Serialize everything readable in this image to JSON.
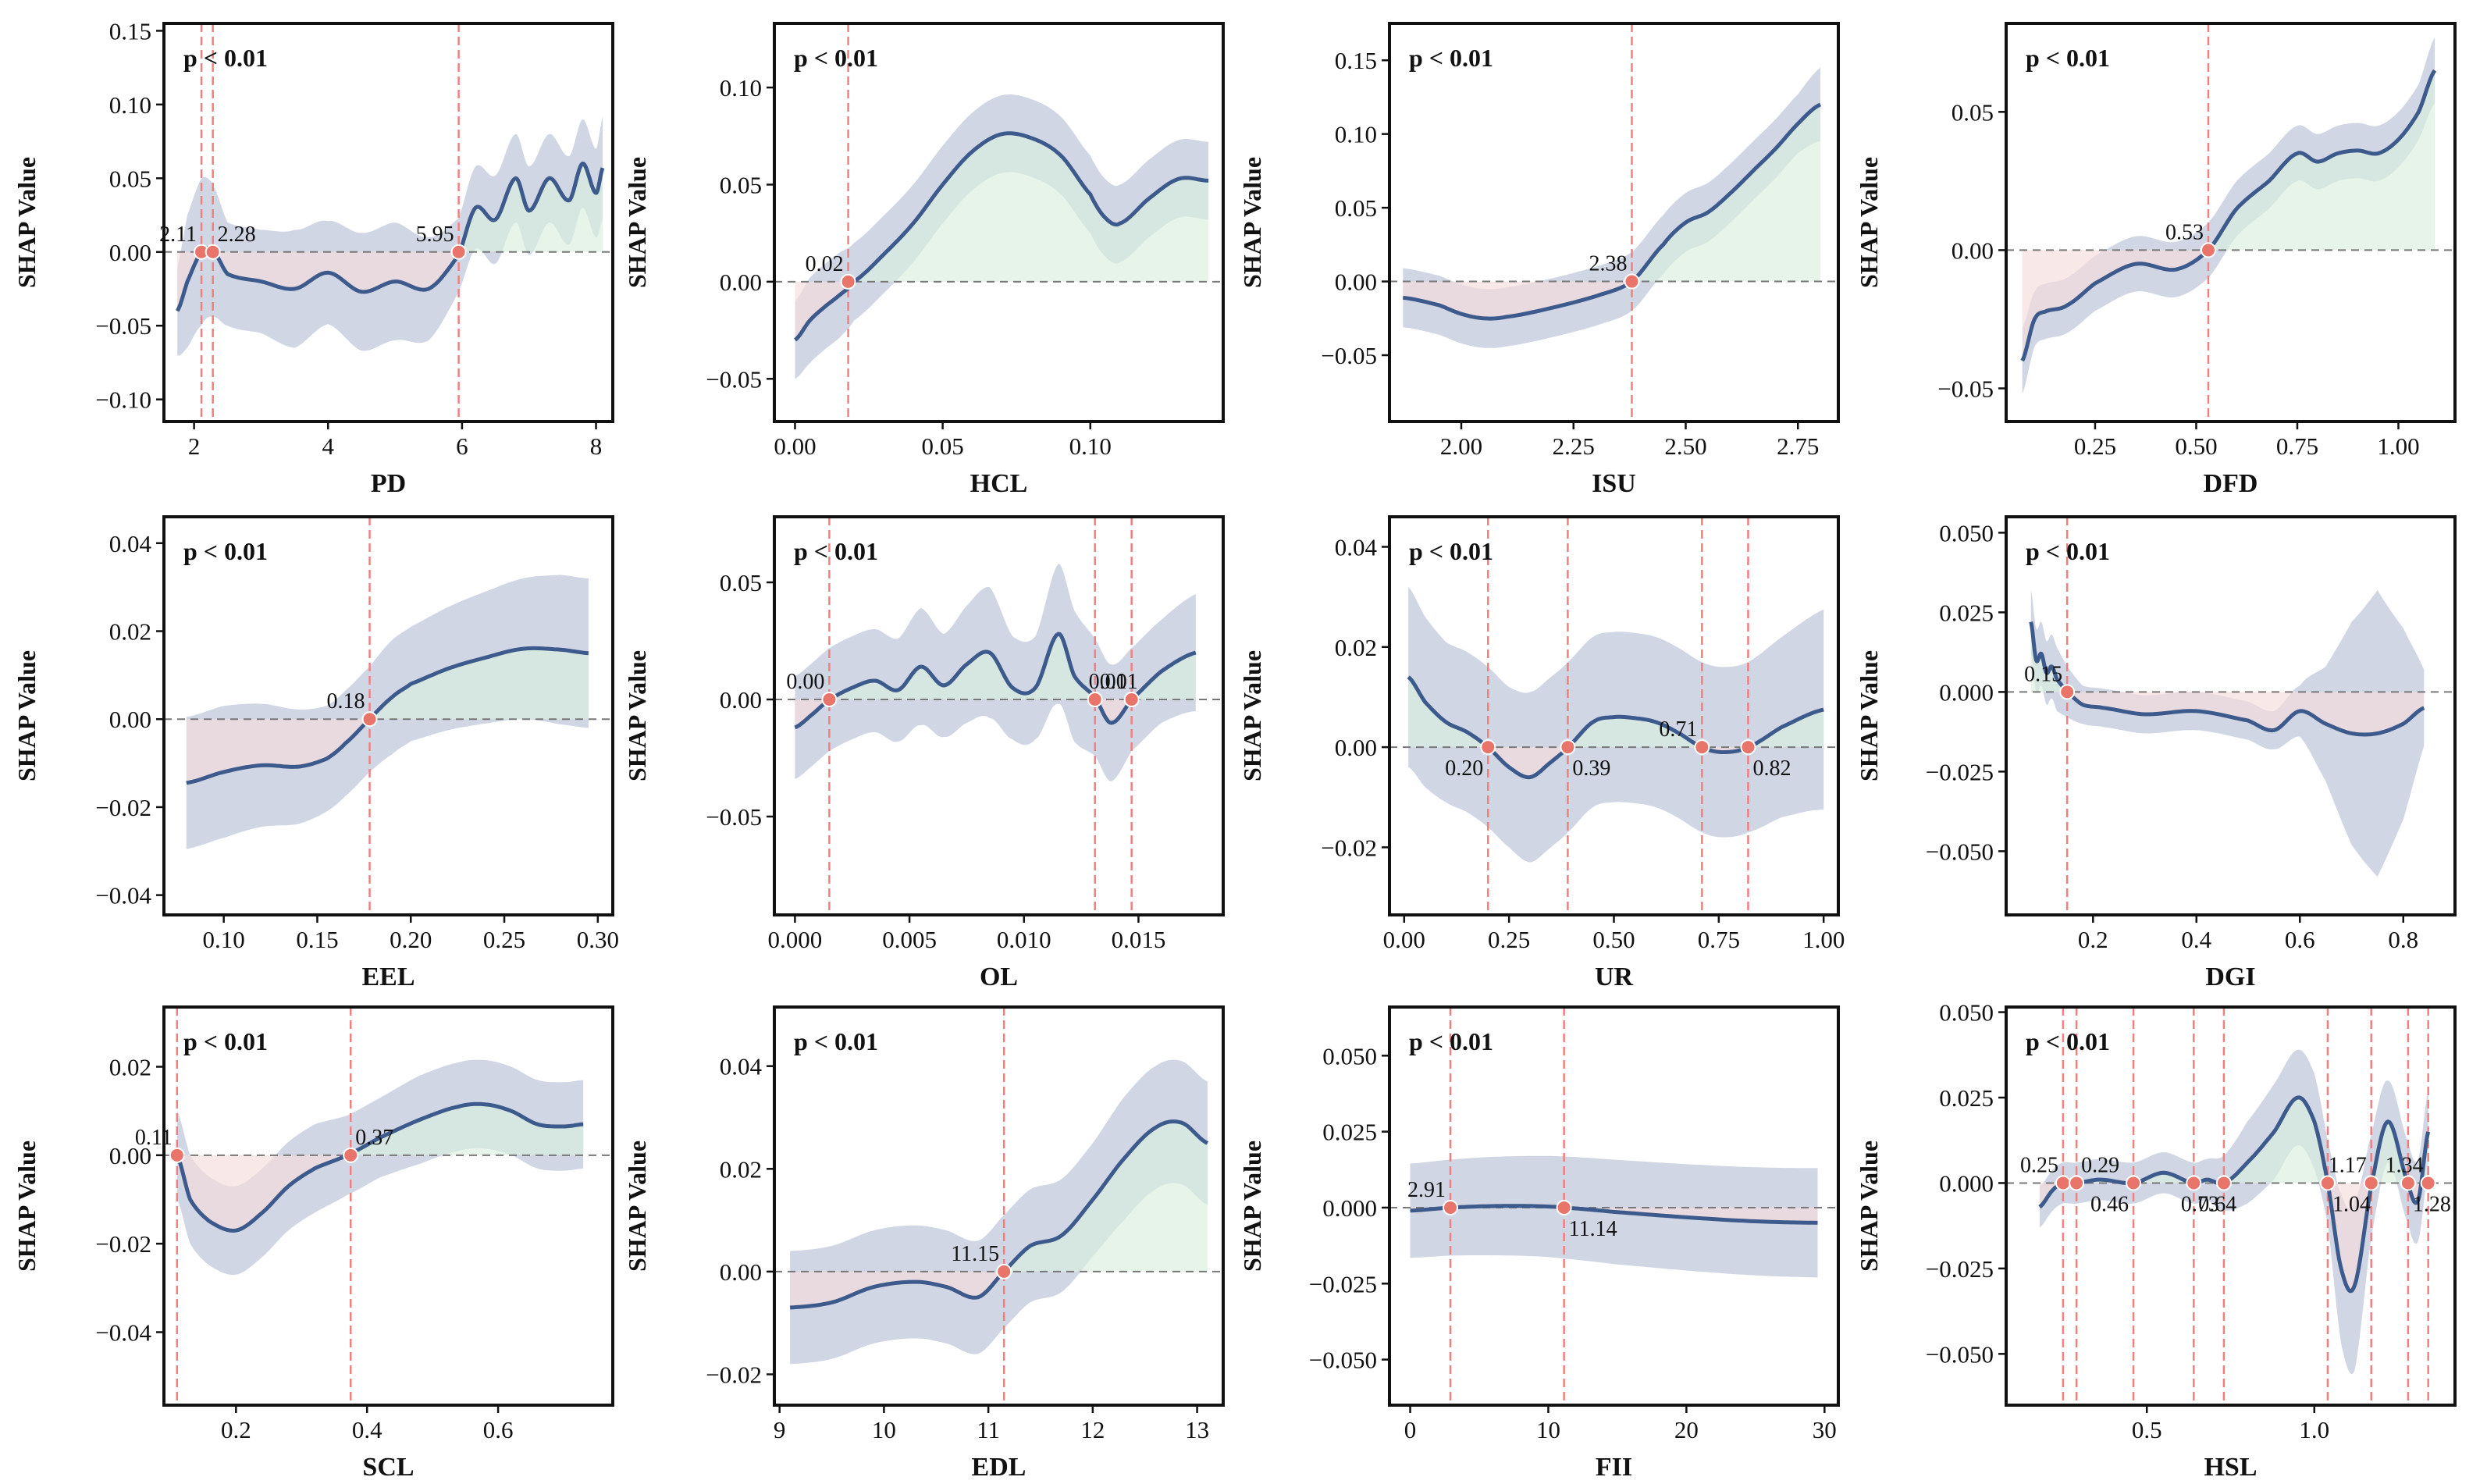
{
  "style": {
    "line_color": "#3d5a8c",
    "band_color": "#c9cfe0",
    "pos_fill": "#d9eedf",
    "neg_fill": "#f6dcdc",
    "vline_color": "#f08080",
    "marker_color": "#e8746a"
  },
  "chart_data": [
    {
      "type": "line",
      "xlabel": "PD",
      "ylabel": "SHAP Value",
      "annotation": "p < 0.01",
      "xlim": [
        1.55,
        8.25
      ],
      "ylim": [
        -0.115,
        0.155
      ],
      "xticks": [
        2,
        4,
        6,
        8
      ],
      "xtick_labels": [
        "2",
        "4",
        "6",
        "8"
      ],
      "yticks": [
        -0.1,
        -0.05,
        0,
        0.05,
        0.1,
        0.15
      ],
      "ytick_labels": [
        "−0.10",
        "−0.05",
        "0.00",
        "0.05",
        "0.10",
        "0.15"
      ],
      "x": [
        1.75,
        1.9,
        2.11,
        2.28,
        2.5,
        3,
        3.5,
        4,
        4.5,
        5,
        5.5,
        5.95,
        6.2,
        6.5,
        6.8,
        7,
        7.3,
        7.6,
        7.8,
        8,
        8.1
      ],
      "y": [
        -0.04,
        -0.02,
        0,
        0.001,
        -0.015,
        -0.02,
        -0.025,
        -0.014,
        -0.027,
        -0.02,
        -0.025,
        -0.002,
        0.03,
        0.022,
        0.05,
        0.028,
        0.05,
        0.035,
        0.06,
        0.04,
        0.057
      ],
      "band": [
        0.03,
        0.045,
        0.05,
        0.045,
        0.035,
        0.035,
        0.04,
        0.035,
        0.04,
        0.04,
        0.035,
        0.025,
        0.028,
        0.03,
        0.03,
        0.03,
        0.03,
        0.03,
        0.03,
        0.03,
        0.035
      ],
      "crossings": [
        {
          "x": 2.11,
          "label": "2.11"
        },
        {
          "x": 2.28,
          "label": "2.28"
        },
        {
          "x": 5.95,
          "label": "5.95"
        }
      ]
    },
    {
      "type": "line",
      "xlabel": "HCL",
      "ylabel": "SHAP Value",
      "annotation": "p < 0.01",
      "xlim": [
        -0.007,
        0.145
      ],
      "ylim": [
        -0.072,
        0.133
      ],
      "xticks": [
        0,
        0.05,
        0.1
      ],
      "xtick_labels": [
        "0.00",
        "0.05",
        "0.10"
      ],
      "yticks": [
        -0.05,
        0,
        0.05,
        0.1
      ],
      "ytick_labels": [
        "−0.05",
        "0.00",
        "0.05",
        "0.10"
      ],
      "x": [
        0,
        0.005,
        0.01,
        0.015,
        0.02,
        0.03,
        0.04,
        0.05,
        0.06,
        0.07,
        0.08,
        0.09,
        0.1,
        0.105,
        0.11,
        0.12,
        0.13,
        0.14
      ],
      "y": [
        -0.03,
        -0.02,
        -0.013,
        -0.007,
        0,
        0.014,
        0.03,
        0.05,
        0.067,
        0.076,
        0.074,
        0.065,
        0.045,
        0.033,
        0.03,
        0.043,
        0.053,
        0.052
      ],
      "band": [
        0.02,
        0.022,
        0.022,
        0.022,
        0.02,
        0.02,
        0.02,
        0.02,
        0.02,
        0.02,
        0.02,
        0.02,
        0.02,
        0.02,
        0.02,
        0.02,
        0.02,
        0.02
      ],
      "crossings": [
        {
          "x": 0.018,
          "label": "0.02"
        }
      ]
    },
    {
      "type": "line",
      "xlabel": "ISU",
      "ylabel": "SHAP Value",
      "annotation": "p < 0.01",
      "xlim": [
        1.84,
        2.84
      ],
      "ylim": [
        -0.095,
        0.175
      ],
      "xticks": [
        2,
        2.25,
        2.5,
        2.75
      ],
      "xtick_labels": [
        "2.00",
        "2.25",
        "2.50",
        "2.75"
      ],
      "yticks": [
        -0.05,
        0,
        0.05,
        0.1,
        0.15
      ],
      "ytick_labels": [
        "−0.05",
        "0.00",
        "0.05",
        "0.10",
        "0.15"
      ],
      "x": [
        1.87,
        1.95,
        2,
        2.05,
        2.1,
        2.2,
        2.3,
        2.38,
        2.45,
        2.5,
        2.55,
        2.6,
        2.65,
        2.7,
        2.75,
        2.8
      ],
      "y": [
        -0.011,
        -0.016,
        -0.022,
        -0.025,
        -0.024,
        -0.018,
        -0.01,
        0,
        0.025,
        0.04,
        0.047,
        0.06,
        0.075,
        0.09,
        0.107,
        0.12
      ],
      "band": [
        0.02,
        0.02,
        0.02,
        0.02,
        0.02,
        0.02,
        0.02,
        0.02,
        0.02,
        0.02,
        0.02,
        0.02,
        0.02,
        0.02,
        0.02,
        0.025
      ],
      "crossings": [
        {
          "x": 2.38,
          "label": "2.38"
        }
      ]
    },
    {
      "type": "line",
      "xlabel": "DFD",
      "ylabel": "SHAP Value",
      "annotation": "p < 0.01",
      "xlim": [
        0.03,
        1.14
      ],
      "ylim": [
        -0.062,
        0.082
      ],
      "xticks": [
        0.25,
        0.5,
        0.75,
        1
      ],
      "xtick_labels": [
        "0.25",
        "0.50",
        "0.75",
        "1.00"
      ],
      "yticks": [
        -0.05,
        0,
        0.05
      ],
      "ytick_labels": [
        "−0.05",
        "0.00",
        "0.05"
      ],
      "x": [
        0.07,
        0.1,
        0.13,
        0.18,
        0.25,
        0.35,
        0.45,
        0.53,
        0.6,
        0.68,
        0.75,
        0.8,
        0.85,
        0.9,
        0.95,
        1,
        1.05,
        1.09
      ],
      "y": [
        -0.04,
        -0.025,
        -0.022,
        -0.02,
        -0.012,
        -0.005,
        -0.007,
        0,
        0.015,
        0.025,
        0.035,
        0.032,
        0.035,
        0.036,
        0.035,
        0.04,
        0.05,
        0.065
      ],
      "band": [
        0.012,
        0.01,
        0.01,
        0.01,
        0.01,
        0.01,
        0.01,
        0.01,
        0.01,
        0.01,
        0.01,
        0.01,
        0.01,
        0.01,
        0.01,
        0.01,
        0.01,
        0.012
      ],
      "crossings": [
        {
          "x": 0.53,
          "label": "0.53"
        }
      ]
    },
    {
      "type": "line",
      "xlabel": "EEL",
      "ylabel": "SHAP Value",
      "annotation": "p < 0.01",
      "xlim": [
        0.068,
        0.308
      ],
      "ylim": [
        -0.0445,
        0.046
      ],
      "xticks": [
        0.1,
        0.15,
        0.2,
        0.25,
        0.3
      ],
      "xtick_labels": [
        "0.10",
        "0.15",
        "0.20",
        "0.25",
        "0.30"
      ],
      "yticks": [
        -0.04,
        -0.02,
        0,
        0.02,
        0.04
      ],
      "ytick_labels": [
        "−0.04",
        "−0.02",
        "0.00",
        "0.02",
        "0.04"
      ],
      "x": [
        0.08,
        0.1,
        0.12,
        0.14,
        0.155,
        0.165,
        0.178,
        0.19,
        0.2,
        0.22,
        0.24,
        0.26,
        0.28,
        0.295
      ],
      "y": [
        -0.0145,
        -0.012,
        -0.0105,
        -0.0108,
        -0.009,
        -0.0055,
        0,
        0.005,
        0.008,
        0.0115,
        0.014,
        0.016,
        0.0158,
        0.015
      ],
      "band": [
        0.015,
        0.015,
        0.014,
        0.013,
        0.012,
        0.012,
        0.012,
        0.013,
        0.013,
        0.014,
        0.015,
        0.016,
        0.017,
        0.017
      ],
      "crossings": [
        {
          "x": 0.178,
          "label": "0.18"
        }
      ]
    },
    {
      "type": "line",
      "xlabel": "OL",
      "ylabel": "SHAP Value",
      "annotation": "p < 0.01",
      "xlim": [
        -0.0009,
        0.0187
      ],
      "ylim": [
        -0.092,
        0.078
      ],
      "xticks": [
        0,
        0.005,
        0.01,
        0.015
      ],
      "xtick_labels": [
        "0.000",
        "0.005",
        "0.010",
        "0.015"
      ],
      "yticks": [
        -0.05,
        0,
        0.05
      ],
      "ytick_labels": [
        "−0.05",
        "0.00",
        "0.05"
      ],
      "x": [
        0,
        0.0008,
        0.0015,
        0.0025,
        0.0035,
        0.0045,
        0.0055,
        0.0065,
        0.0075,
        0.0085,
        0.0095,
        0.0105,
        0.0115,
        0.0122,
        0.0131,
        0.0138,
        0.0147,
        0.016,
        0.0175
      ],
      "y": [
        -0.012,
        -0.006,
        0,
        0.005,
        0.008,
        0.004,
        0.014,
        0.006,
        0.015,
        0.02,
        0.005,
        0.005,
        0.028,
        0.01,
        0.001,
        -0.01,
        0,
        0.012,
        0.02
      ],
      "band": [
        0.022,
        0.022,
        0.022,
        0.022,
        0.022,
        0.022,
        0.025,
        0.022,
        0.025,
        0.028,
        0.022,
        0.022,
        0.03,
        0.028,
        0.025,
        0.025,
        0.022,
        0.022,
        0.025
      ],
      "crossings": [
        {
          "x": 0.0015,
          "label": "0.00"
        },
        {
          "x": 0.0131,
          "label": "0.01"
        },
        {
          "x": 0.0147,
          "label": "0.01"
        }
      ]
    },
    {
      "type": "line",
      "xlabel": "UR",
      "ylabel": "SHAP Value",
      "annotation": "p < 0.01",
      "xlim": [
        -0.035,
        1.035
      ],
      "ylim": [
        -0.0335,
        0.046
      ],
      "xticks": [
        0,
        0.25,
        0.5,
        0.75,
        1
      ],
      "xtick_labels": [
        "0.00",
        "0.25",
        "0.50",
        "0.75",
        "1.00"
      ],
      "yticks": [
        -0.02,
        0,
        0.02,
        0.04
      ],
      "ytick_labels": [
        "−0.02",
        "0.00",
        "0.02",
        "0.04"
      ],
      "x": [
        0.01,
        0.05,
        0.1,
        0.15,
        0.2,
        0.25,
        0.3,
        0.35,
        0.39,
        0.45,
        0.5,
        0.55,
        0.6,
        0.65,
        0.71,
        0.76,
        0.82,
        0.9,
        1
      ],
      "y": [
        0.014,
        0.009,
        0.005,
        0.003,
        0,
        -0.004,
        -0.006,
        -0.003,
        0,
        0.005,
        0.006,
        0.0058,
        0.005,
        0.003,
        0,
        -0.001,
        0,
        0.004,
        0.0075
      ],
      "band": [
        0.018,
        0.017,
        0.016,
        0.016,
        0.016,
        0.016,
        0.017,
        0.017,
        0.017,
        0.017,
        0.017,
        0.017,
        0.017,
        0.017,
        0.017,
        0.017,
        0.017,
        0.018,
        0.02
      ],
      "crossings": [
        {
          "x": 0.2,
          "label": "0.20"
        },
        {
          "x": 0.39,
          "label": "0.39"
        },
        {
          "x": 0.71,
          "label": "0.71"
        },
        {
          "x": 0.82,
          "label": "0.82"
        }
      ]
    },
    {
      "type": "line",
      "xlabel": "DGI",
      "ylabel": "SHAP Value",
      "annotation": "p < 0.01",
      "xlim": [
        0.032,
        0.9
      ],
      "ylim": [
        -0.07,
        0.055
      ],
      "xticks": [
        0.2,
        0.4,
        0.6,
        0.8
      ],
      "xtick_labels": [
        "0.2",
        "0.4",
        "0.6",
        "0.8"
      ],
      "yticks": [
        -0.05,
        -0.025,
        0,
        0.025,
        0.05
      ],
      "ytick_labels": [
        "−0.050",
        "−0.025",
        "0.000",
        "0.025",
        "0.050"
      ],
      "x": [
        0.08,
        0.09,
        0.1,
        0.11,
        0.12,
        0.13,
        0.15,
        0.18,
        0.22,
        0.3,
        0.4,
        0.5,
        0.55,
        0.6,
        0.65,
        0.7,
        0.75,
        0.8,
        0.84
      ],
      "y": [
        0.022,
        0.01,
        0.012,
        0.006,
        0.008,
        0.004,
        0,
        -0.004,
        -0.005,
        -0.007,
        -0.006,
        -0.009,
        -0.012,
        -0.006,
        -0.01,
        -0.013,
        -0.013,
        -0.01,
        -0.005
      ],
      "band": [
        0.01,
        0.01,
        0.01,
        0.01,
        0.01,
        0.01,
        0.008,
        0.006,
        0.006,
        0.006,
        0.006,
        0.006,
        0.006,
        0.008,
        0.018,
        0.035,
        0.045,
        0.03,
        0.012
      ],
      "crossings": [
        {
          "x": 0.15,
          "label": "0.15"
        }
      ]
    },
    {
      "type": "line",
      "xlabel": "SCL",
      "ylabel": "SHAP Value",
      "annotation": "p < 0.01",
      "xlim": [
        0.09,
        0.775
      ],
      "ylim": [
        -0.0565,
        0.0335
      ],
      "xticks": [
        0.2,
        0.4,
        0.6
      ],
      "xtick_labels": [
        "0.2",
        "0.4",
        "0.6"
      ],
      "yticks": [
        -0.04,
        -0.02,
        0,
        0.02
      ],
      "ytick_labels": [
        "−0.04",
        "−0.02",
        "0.00",
        "0.02"
      ],
      "x": [
        0.11,
        0.13,
        0.16,
        0.2,
        0.24,
        0.28,
        0.32,
        0.37,
        0.42,
        0.48,
        0.54,
        0.58,
        0.62,
        0.66,
        0.7,
        0.73
      ],
      "y": [
        0,
        -0.01,
        -0.015,
        -0.017,
        -0.013,
        -0.007,
        -0.003,
        0,
        0.004,
        0.008,
        0.011,
        0.0115,
        0.01,
        0.007,
        0.0065,
        0.007
      ],
      "band": [
        0.01,
        0.01,
        0.01,
        0.01,
        0.01,
        0.01,
        0.01,
        0.009,
        0.009,
        0.01,
        0.01,
        0.01,
        0.01,
        0.01,
        0.01,
        0.01
      ],
      "crossings": [
        {
          "x": 0.11,
          "label": "0.11"
        },
        {
          "x": 0.375,
          "label": "0.37"
        }
      ]
    },
    {
      "type": "line",
      "xlabel": "EDL",
      "ylabel": "SHAP Value",
      "annotation": "p < 0.01",
      "xlim": [
        8.95,
        13.25
      ],
      "ylim": [
        -0.026,
        0.0515
      ],
      "xticks": [
        9,
        10,
        11,
        12,
        13
      ],
      "xtick_labels": [
        "9",
        "10",
        "11",
        "12",
        "13"
      ],
      "yticks": [
        -0.02,
        0,
        0.02,
        0.04
      ],
      "ytick_labels": [
        "−0.02",
        "0.00",
        "0.02",
        "0.04"
      ],
      "x": [
        9.1,
        9.5,
        9.9,
        10.3,
        10.6,
        10.9,
        11.15,
        11.4,
        11.7,
        12,
        12.3,
        12.6,
        12.85,
        13.1
      ],
      "y": [
        -0.007,
        -0.006,
        -0.003,
        -0.002,
        -0.003,
        -0.005,
        0,
        0.005,
        0.007,
        0.014,
        0.022,
        0.028,
        0.029,
        0.025
      ],
      "band": [
        0.011,
        0.011,
        0.011,
        0.011,
        0.011,
        0.011,
        0.011,
        0.011,
        0.011,
        0.011,
        0.012,
        0.012,
        0.012,
        0.012
      ],
      "crossings": [
        {
          "x": 11.15,
          "label": "11.15"
        }
      ]
    },
    {
      "type": "line",
      "xlabel": "FII",
      "ylabel": "SHAP Value",
      "annotation": "p < 0.01",
      "xlim": [
        -1.5,
        31
      ],
      "ylim": [
        -0.065,
        0.066
      ],
      "xticks": [
        0,
        10,
        20,
        30
      ],
      "xtick_labels": [
        "0",
        "10",
        "20",
        "30"
      ],
      "yticks": [
        -0.05,
        -0.025,
        0,
        0.025,
        0.05
      ],
      "ytick_labels": [
        "−0.050",
        "−0.025",
        "0.000",
        "0.025",
        "0.050"
      ],
      "x": [
        0,
        2.91,
        6,
        9,
        11.14,
        15,
        20,
        25,
        29.5
      ],
      "y": [
        -0.001,
        0,
        0.0005,
        0.0005,
        0,
        -0.0015,
        -0.0032,
        -0.0045,
        -0.005
      ],
      "band": [
        0.0155,
        0.0158,
        0.0162,
        0.0165,
        0.0168,
        0.0172,
        0.0175,
        0.0178,
        0.018
      ],
      "crossings": [
        {
          "x": 2.91,
          "label": "2.91"
        },
        {
          "x": 11.14,
          "label": "11.14"
        }
      ]
    },
    {
      "type": "line",
      "xlabel": "HSL",
      "ylabel": "SHAP Value",
      "annotation": "p < 0.01",
      "xlim": [
        0.08,
        1.42
      ],
      "ylim": [
        -0.065,
        0.0515
      ],
      "xticks": [
        0.5,
        1
      ],
      "xtick_labels": [
        "0.5",
        "1.0"
      ],
      "yticks": [
        -0.05,
        -0.025,
        0,
        0.025,
        0.05
      ],
      "ytick_labels": [
        "−0.050",
        "−0.025",
        "0.000",
        "0.025",
        "0.050"
      ],
      "x": [
        0.18,
        0.22,
        0.25,
        0.27,
        0.29,
        0.36,
        0.46,
        0.55,
        0.64,
        0.68,
        0.73,
        0.8,
        0.88,
        0.95,
        1,
        1.04,
        1.08,
        1.12,
        1.17,
        1.22,
        1.28,
        1.31,
        1.34
      ],
      "y": [
        -0.007,
        -0.002,
        0,
        0,
        0,
        0.001,
        0,
        0.003,
        0,
        0.001,
        0,
        0.006,
        0.015,
        0.025,
        0.018,
        0,
        -0.025,
        -0.03,
        -0.001,
        0.018,
        0,
        -0.005,
        0.015
      ],
      "band": [
        0.006,
        0.006,
        0.006,
        0.006,
        0.006,
        0.006,
        0.006,
        0.006,
        0.006,
        0.006,
        0.008,
        0.012,
        0.014,
        0.014,
        0.014,
        0.012,
        0.022,
        0.025,
        0.015,
        0.012,
        0.012,
        0.012,
        0.012
      ],
      "crossings": [
        {
          "x": 0.25,
          "label": "0.25"
        },
        {
          "x": 0.29,
          "label": "0.29"
        },
        {
          "x": 0.46,
          "label": "0.46"
        },
        {
          "x": 0.64,
          "label": "0.64"
        },
        {
          "x": 0.73,
          "label": "0.73"
        },
        {
          "x": 1.04,
          "label": "1.04"
        },
        {
          "x": 1.17,
          "label": "1.17"
        },
        {
          "x": 1.28,
          "label": "1.28"
        },
        {
          "x": 1.34,
          "label": "1.34"
        }
      ]
    }
  ]
}
